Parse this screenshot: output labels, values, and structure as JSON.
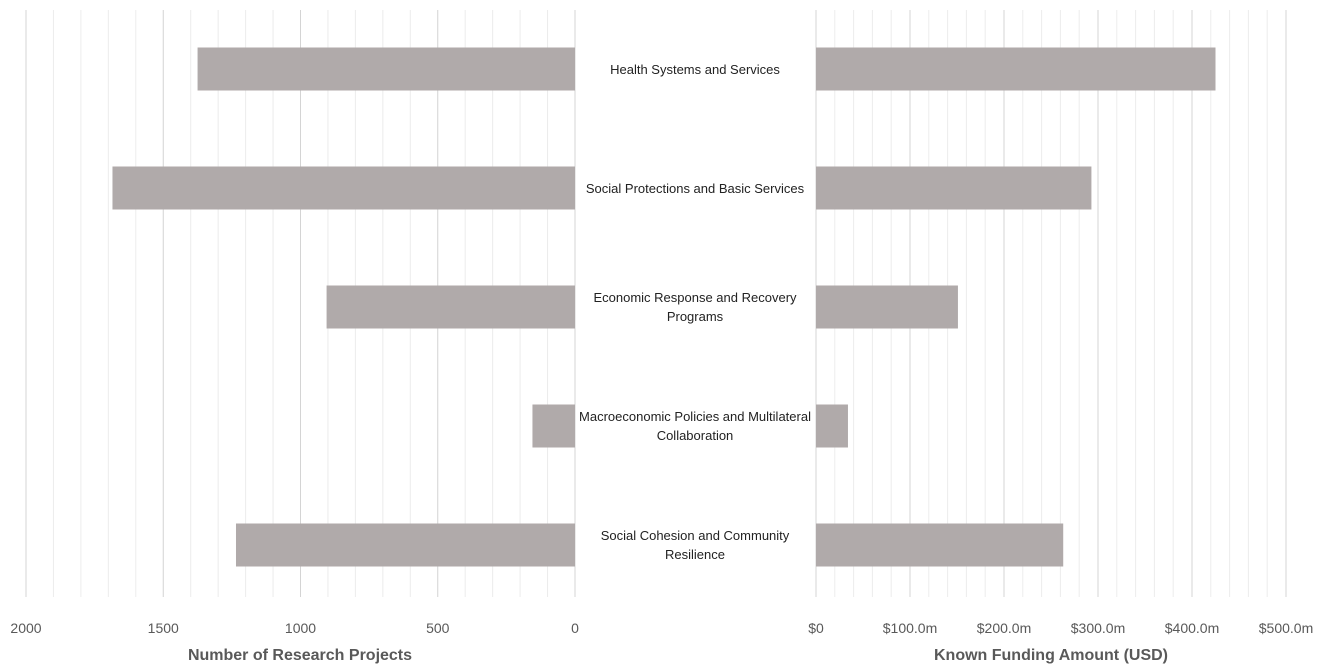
{
  "chart_data": {
    "type": "bar",
    "orientation": "horizontal",
    "layout": "butterfly",
    "categories": [
      "Health Systems and Services",
      "Social Protections and Basic Services",
      "Economic Response and Recovery Programs",
      "Macroeconomic Policies and Multilateral Collaboration",
      "Social Cohesion and Community Resilience"
    ],
    "bar_color": "#b0aaaa",
    "grid": true,
    "left": {
      "xlabel": "Number of Research Projects",
      "xlim": [
        2000,
        0
      ],
      "ticks": [
        2000,
        1500,
        1000,
        500,
        0
      ],
      "tick_labels": [
        "2000",
        "1500",
        "1000",
        "500",
        "0"
      ],
      "values": [
        1375,
        1685,
        905,
        155,
        1235
      ]
    },
    "right": {
      "xlabel": "Known Funding Amount (USD)",
      "unit": "millions USD",
      "xlim": [
        0,
        500
      ],
      "ticks": [
        0,
        100,
        200,
        300,
        400,
        500
      ],
      "tick_labels": [
        "$0",
        "$100.0m",
        "$200.0m",
        "$300.0m",
        "$400.0m",
        "$500.0m"
      ],
      "values": [
        425,
        293,
        151,
        34,
        263
      ]
    }
  }
}
